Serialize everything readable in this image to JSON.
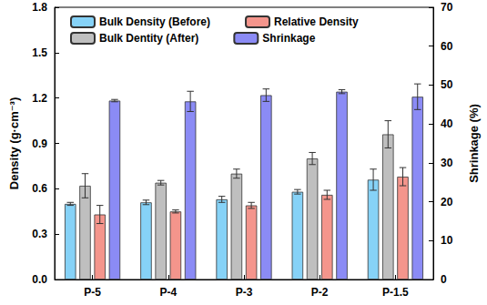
{
  "chart_data": {
    "type": "bar",
    "categories": [
      "P-5",
      "P-4",
      "P-3",
      "P-2",
      "P-1.5"
    ],
    "series": [
      {
        "name": "Bulk Density (Before)",
        "color": "#86d2f7",
        "values": [
          0.5,
          0.51,
          0.53,
          0.58,
          0.66
        ],
        "errors": [
          0.01,
          0.015,
          0.02,
          0.015,
          0.07
        ]
      },
      {
        "name": "Bulk Dentity (After)",
        "color": "#bfbfbf",
        "values": [
          0.62,
          0.64,
          0.7,
          0.8,
          0.96
        ],
        "errors": [
          0.08,
          0.015,
          0.03,
          0.04,
          0.09
        ]
      },
      {
        "name": "Relative Density",
        "color": "#f4958c",
        "values": [
          0.43,
          0.45,
          0.49,
          0.56,
          0.68
        ],
        "errors": [
          0.06,
          0.01,
          0.02,
          0.03,
          0.06
        ]
      },
      {
        "name": "Shrinkage",
        "color": "#8b8bf5",
        "axis": "y2",
        "values": [
          46.0,
          45.8,
          47.4,
          48.3,
          47.0
        ],
        "errors": [
          0.3,
          2.6,
          1.6,
          0.5,
          3.3
        ]
      }
    ],
    "y_label": "Density (g·cm⁻³)",
    "y2_label": "Shrinkage (%)",
    "ylim": [
      0,
      1.8
    ],
    "yticks": [
      {
        "value": 0,
        "label": "0.0"
      },
      0.3,
      0.6,
      0.9,
      1.2,
      1.5,
      1.8
    ],
    "y2lim": [
      0,
      70
    ],
    "y2ticks": [
      0,
      10,
      20,
      30,
      40,
      50,
      60,
      70
    ],
    "legend": "top",
    "grid": false
  }
}
